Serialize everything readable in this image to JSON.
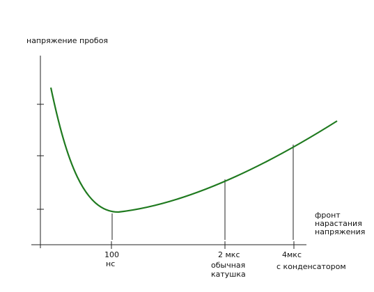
{
  "y_axis_label": "напряжение пробоя",
  "x_marks": [
    {
      "label": "100",
      "note_lines": [
        "нс"
      ]
    },
    {
      "label": "2  мкс",
      "note_lines": [
        "обычная",
        "катушка"
      ]
    },
    {
      "label": "4мкс",
      "note_lines": [
        "с  конденсатором"
      ]
    }
  ],
  "x_axis_label_lines": [
    "фронт",
    "нарастания",
    "напряжения"
  ]
}
